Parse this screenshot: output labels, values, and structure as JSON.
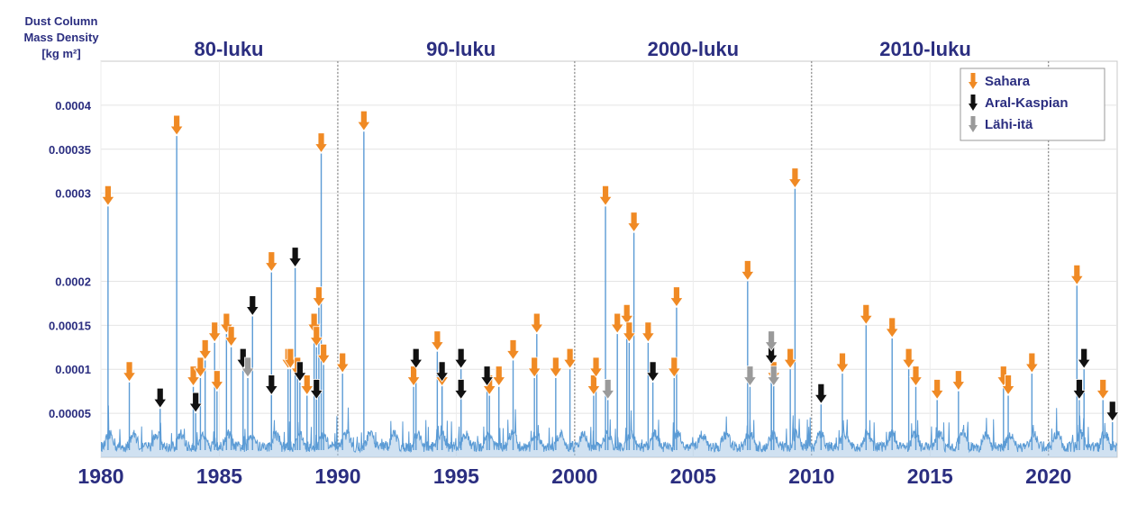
{
  "chart_data": {
    "type": "line",
    "ylabel_lines": [
      "Dust Column",
      "Mass Density",
      "[kg m²]"
    ],
    "xlim": [
      1980,
      2022.9
    ],
    "ylim": [
      0,
      0.00045
    ],
    "y_ticks": [
      5e-05,
      0.0001,
      0.00015,
      0.0002,
      0.0003,
      0.00035,
      0.0004
    ],
    "y_tick_labels": [
      "0.00005",
      "0.0001",
      "0.00015",
      "0.0002",
      "0.0003",
      "0.00035",
      "0.0004"
    ],
    "x_ticks": [
      1980,
      1985,
      1990,
      1995,
      2000,
      2005,
      2010,
      2015,
      2020
    ],
    "x_tick_labels": [
      "1980",
      "1985",
      "1990",
      "1995",
      "2000",
      "2005",
      "2010",
      "2015",
      "2020"
    ],
    "decades": [
      {
        "label": "80-luku",
        "center": 1985.4
      },
      {
        "label": "90-luku",
        "center": 1995.2
      },
      {
        "label": "2000-luku",
        "center": 2005.0
      },
      {
        "label": "2010-luku",
        "center": 2014.8
      }
    ],
    "decade_dividers": [
      1990,
      2000,
      2010,
      2020
    ],
    "grid": true,
    "legend_position": "top-right",
    "series": [
      {
        "name": "Sahara",
        "color": "#f08a24",
        "events": [
          {
            "x": 1980.3,
            "y": 0.000285
          },
          {
            "x": 1981.2,
            "y": 8.5e-05
          },
          {
            "x": 1983.2,
            "y": 0.000365
          },
          {
            "x": 1983.9,
            "y": 8e-05
          },
          {
            "x": 1984.2,
            "y": 9e-05
          },
          {
            "x": 1984.4,
            "y": 0.00011
          },
          {
            "x": 1984.8,
            "y": 0.00013
          },
          {
            "x": 1984.9,
            "y": 7.5e-05
          },
          {
            "x": 1985.3,
            "y": 0.00014
          },
          {
            "x": 1985.5,
            "y": 0.000125
          },
          {
            "x": 1987.2,
            "y": 0.00021
          },
          {
            "x": 1987.9,
            "y": 0.0001
          },
          {
            "x": 1988.0,
            "y": 0.0001
          },
          {
            "x": 1988.3,
            "y": 9e-05
          },
          {
            "x": 1988.7,
            "y": 7e-05
          },
          {
            "x": 1989.0,
            "y": 0.00014
          },
          {
            "x": 1989.1,
            "y": 0.000125
          },
          {
            "x": 1989.2,
            "y": 0.00017
          },
          {
            "x": 1989.3,
            "y": 0.000345
          },
          {
            "x": 1989.4,
            "y": 0.000105
          },
          {
            "x": 1990.2,
            "y": 9.5e-05
          },
          {
            "x": 1991.1,
            "y": 0.00037
          },
          {
            "x": 1993.2,
            "y": 8e-05
          },
          {
            "x": 1994.2,
            "y": 0.00012
          },
          {
            "x": 1994.4,
            "y": 8e-05
          },
          {
            "x": 1996.4,
            "y": 7e-05
          },
          {
            "x": 1996.8,
            "y": 8e-05
          },
          {
            "x": 1997.4,
            "y": 0.00011
          },
          {
            "x": 1998.3,
            "y": 9e-05
          },
          {
            "x": 1998.4,
            "y": 0.00014
          },
          {
            "x": 1999.2,
            "y": 9e-05
          },
          {
            "x": 1999.8,
            "y": 0.0001
          },
          {
            "x": 2000.8,
            "y": 7e-05
          },
          {
            "x": 2000.9,
            "y": 9e-05
          },
          {
            "x": 2001.3,
            "y": 0.000285
          },
          {
            "x": 2001.8,
            "y": 0.00014
          },
          {
            "x": 2002.2,
            "y": 0.00015
          },
          {
            "x": 2002.3,
            "y": 0.00013
          },
          {
            "x": 2002.5,
            "y": 0.000255
          },
          {
            "x": 2003.1,
            "y": 0.00013
          },
          {
            "x": 2004.2,
            "y": 9e-05
          },
          {
            "x": 2004.3,
            "y": 0.00017
          },
          {
            "x": 2007.3,
            "y": 0.0002
          },
          {
            "x": 2008.4,
            "y": 8.5e-05
          },
          {
            "x": 2009.1,
            "y": 0.0001
          },
          {
            "x": 2009.3,
            "y": 0.000305
          },
          {
            "x": 2011.3,
            "y": 9.5e-05
          },
          {
            "x": 2012.3,
            "y": 0.00015
          },
          {
            "x": 2013.4,
            "y": 0.000135
          },
          {
            "x": 2014.1,
            "y": 0.0001
          },
          {
            "x": 2014.4,
            "y": 8e-05
          },
          {
            "x": 2015.3,
            "y": 6.5e-05
          },
          {
            "x": 2016.2,
            "y": 7.5e-05
          },
          {
            "x": 2018.1,
            "y": 8e-05
          },
          {
            "x": 2018.3,
            "y": 7e-05
          },
          {
            "x": 2019.3,
            "y": 9.5e-05
          },
          {
            "x": 2021.2,
            "y": 0.000195
          },
          {
            "x": 2022.3,
            "y": 6.5e-05
          }
        ]
      },
      {
        "name": "Aral-Kaspian",
        "color": "#111111",
        "events": [
          {
            "x": 1982.5,
            "y": 5.5e-05
          },
          {
            "x": 1984.0,
            "y": 5e-05
          },
          {
            "x": 1986.0,
            "y": 0.0001
          },
          {
            "x": 1986.4,
            "y": 0.00016
          },
          {
            "x": 1987.2,
            "y": 7e-05
          },
          {
            "x": 1988.2,
            "y": 0.000215
          },
          {
            "x": 1988.4,
            "y": 8.5e-05
          },
          {
            "x": 1989.1,
            "y": 6.5e-05
          },
          {
            "x": 1993.3,
            "y": 0.0001
          },
          {
            "x": 1994.4,
            "y": 8.5e-05
          },
          {
            "x": 1995.2,
            "y": 0.0001
          },
          {
            "x": 1995.2,
            "y": 6.5e-05
          },
          {
            "x": 1996.3,
            "y": 8e-05
          },
          {
            "x": 2003.3,
            "y": 8.5e-05
          },
          {
            "x": 2008.3,
            "y": 0.000105
          },
          {
            "x": 2010.4,
            "y": 6e-05
          },
          {
            "x": 2021.3,
            "y": 6.5e-05
          },
          {
            "x": 2021.5,
            "y": 0.0001
          },
          {
            "x": 2022.7,
            "y": 4e-05
          }
        ]
      },
      {
        "name": "Lähi-itä",
        "color": "#9a9a9a",
        "events": [
          {
            "x": 1986.2,
            "y": 9e-05
          },
          {
            "x": 2001.4,
            "y": 6.5e-05
          },
          {
            "x": 2007.4,
            "y": 8e-05
          },
          {
            "x": 2008.3,
            "y": 0.00012
          },
          {
            "x": 2008.4,
            "y": 8e-05
          }
        ]
      }
    ]
  }
}
